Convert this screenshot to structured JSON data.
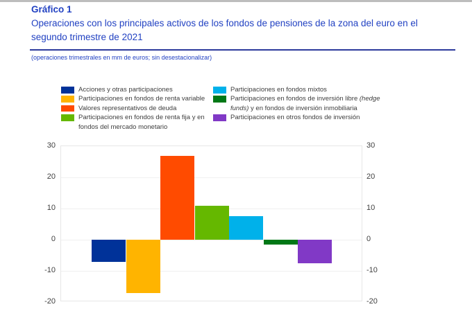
{
  "header": {
    "label": "Gráfico 1",
    "title": "Operaciones con los principales activos de los fondos de pensiones de la zona del euro en el segundo trimestre de 2021",
    "note": "(operaciones trimestrales en mm de euros; sin desestacionalizar)"
  },
  "colors": {
    "title_blue": "#2141C2",
    "rule_blue": "#2C3A9C",
    "text_gray": "#3D3D3D",
    "grid_gray": "#F0F0F0",
    "plot_border": "#E6E6E6"
  },
  "chart_data": {
    "type": "bar",
    "title": "Operaciones con los principales activos de los fondos de pensiones de la zona del euro en el segundo trimestre de 2021",
    "subtitle": "(operaciones trimestrales en mm de euros; sin desestacionalizar)",
    "xlabel": "",
    "ylabel": "",
    "unit": "mm de euros",
    "ylim": [
      -20,
      30
    ],
    "yticks": [
      30,
      20,
      10,
      0,
      -10,
      -20
    ],
    "grid": true,
    "legend_position": "top",
    "x_tick_labels": [],
    "categories": [
      "Acciones y otras participaciones",
      "Participaciones en fondos de renta variable",
      "Valores representativos de deuda",
      "Participaciones en fondos de renta fija y en fondos del mercado monetario",
      "Participaciones en fondos mixtos",
      "Participaciones en fondos de inversión libre (hedge funds) y en fondos de inversión inmobiliaria",
      "Participaciones en otros fondos de inversión"
    ],
    "values": [
      -7,
      -17,
      27,
      11,
      7.5,
      -1.5,
      -7.5
    ],
    "colors": [
      "#003299",
      "#FFB400",
      "#FF4B00",
      "#65B800",
      "#00B1EA",
      "#007816",
      "#8139C6"
    ],
    "legend": [
      {
        "label": "Acciones y otras participaciones",
        "color": "#003299",
        "col": 1
      },
      {
        "label": "Participaciones en fondos de renta variable",
        "color": "#FFB400",
        "col": 1
      },
      {
        "label": "Valores representativos de deuda",
        "color": "#FF4B00",
        "col": 1
      },
      {
        "label": "Participaciones en fondos de renta fija y en fondos del mercado monetario",
        "color": "#65B800",
        "col": 1
      },
      {
        "label": "Participaciones en fondos mixtos",
        "color": "#00B1EA",
        "col": 2
      },
      {
        "label": "Participaciones en fondos de inversión libre ",
        "italic": "(hedge funds)",
        "after_italic": " y en fondos de inversión inmobiliaria",
        "color": "#007816",
        "col": 2
      },
      {
        "label": "Participaciones en otros fondos de inversión",
        "color": "#8139C6",
        "col": 2
      }
    ]
  }
}
